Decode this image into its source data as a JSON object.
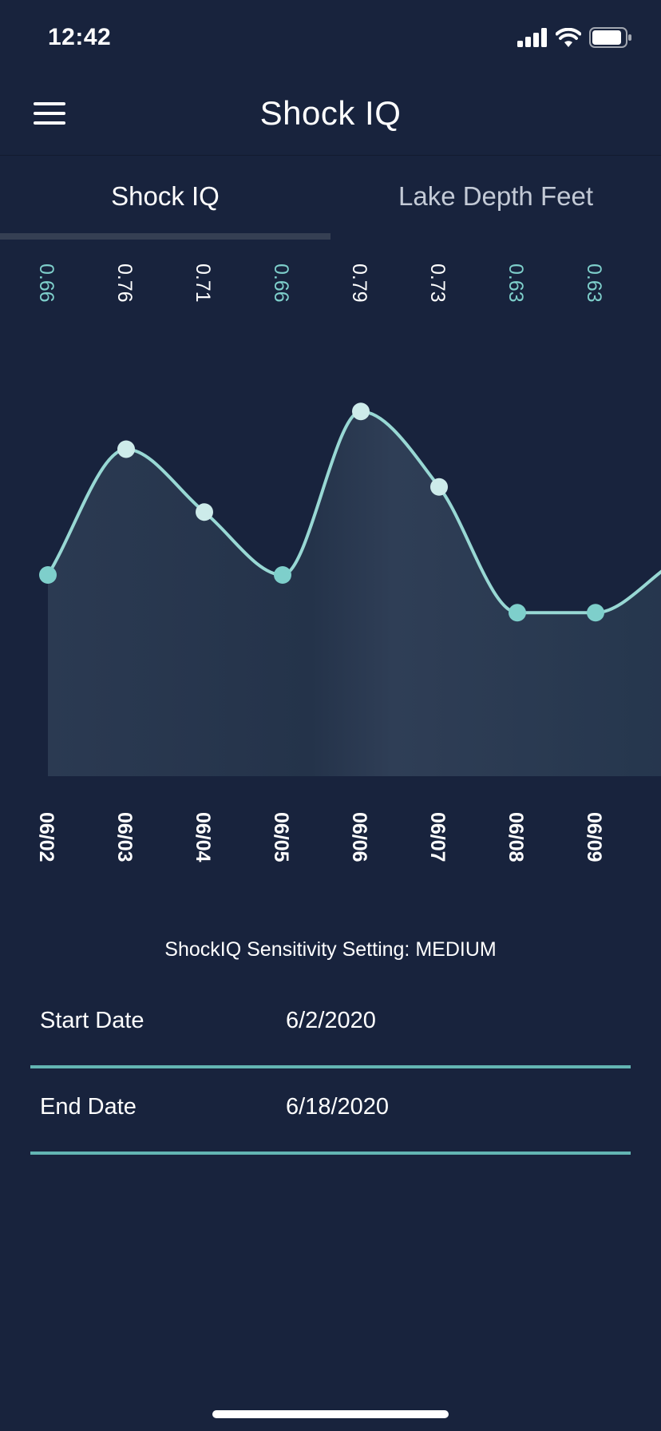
{
  "status": {
    "time": "12:42"
  },
  "nav": {
    "title": "Shock IQ"
  },
  "tabs": [
    {
      "label": "Shock IQ",
      "active": true
    },
    {
      "label": "Lake Depth Feet",
      "active": false
    }
  ],
  "colors": {
    "background": "#18233d",
    "line": "#98d8d4",
    "accent": "#63b5b3",
    "label_dim": "#7ecfcb"
  },
  "chart_data": {
    "type": "area",
    "categories": [
      "06/02",
      "06/03",
      "06/04",
      "06/05",
      "06/06",
      "06/07",
      "06/08",
      "06/09"
    ],
    "values": [
      0.66,
      0.76,
      0.71,
      0.66,
      0.79,
      0.73,
      0.63,
      0.63
    ],
    "value_labels": [
      "0.66",
      "0.76",
      "0.71",
      "0.66",
      "0.79",
      "0.73",
      "0.63",
      "0.63"
    ],
    "trailing_value": 0.67,
    "ylim": [
      0.5,
      0.82
    ],
    "grid": false
  },
  "sensitivity": "ShockIQ Sensitivity Setting: MEDIUM",
  "dates": {
    "start": {
      "label": "Start Date",
      "value": "6/2/2020"
    },
    "end": {
      "label": "End Date",
      "value": "6/18/2020"
    }
  }
}
